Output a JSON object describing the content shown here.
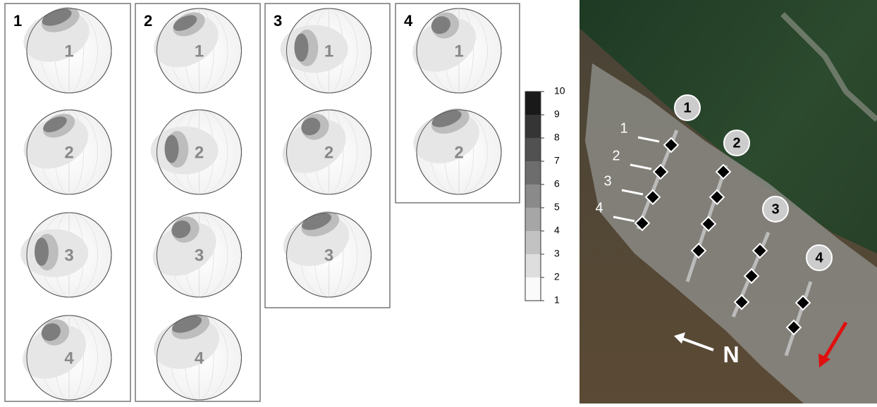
{
  "panels": [
    {
      "label": "1",
      "nets": [
        "1",
        "2",
        "3",
        "4"
      ]
    },
    {
      "label": "2",
      "nets": [
        "1",
        "2",
        "3",
        "4"
      ]
    },
    {
      "label": "3",
      "nets": [
        "1",
        "2",
        "3"
      ]
    },
    {
      "label": "4",
      "nets": [
        "1",
        "2"
      ]
    }
  ],
  "colorbar": {
    "ticks": [
      1,
      2,
      3,
      4,
      5,
      6,
      7,
      8,
      9,
      10
    ]
  },
  "photo": {
    "profiles": [
      "1",
      "2",
      "3",
      "4"
    ],
    "positions": [
      "1",
      "2",
      "3",
      "4"
    ],
    "north": "N"
  }
}
